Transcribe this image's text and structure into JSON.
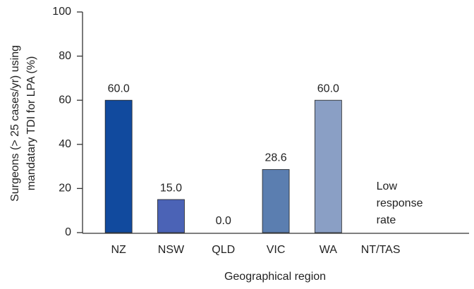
{
  "chart_data": {
    "type": "bar",
    "categories": [
      "NZ",
      "NSW",
      "QLD",
      "VIC",
      "WA",
      "NT/TAS"
    ],
    "values": [
      60,
      15,
      0,
      28.6,
      60,
      null
    ],
    "value_labels": [
      "60.0",
      "15.0",
      "0.0",
      "28.6",
      "60.0",
      null
    ],
    "colors": [
      "#114a9e",
      "#4b63b6",
      null,
      "#5b7eb0",
      "#8a9fc5",
      null
    ],
    "ylim": [
      0,
      100
    ],
    "yticks": [
      0,
      20,
      40,
      60,
      80,
      100
    ],
    "ylabel": [
      "Surgeons (> 25 cases/yr) using",
      "mandatary TDI for LPA (%)"
    ],
    "xlabel": "Geographical region",
    "annotation": [
      "Low",
      "response",
      "rate"
    ]
  }
}
